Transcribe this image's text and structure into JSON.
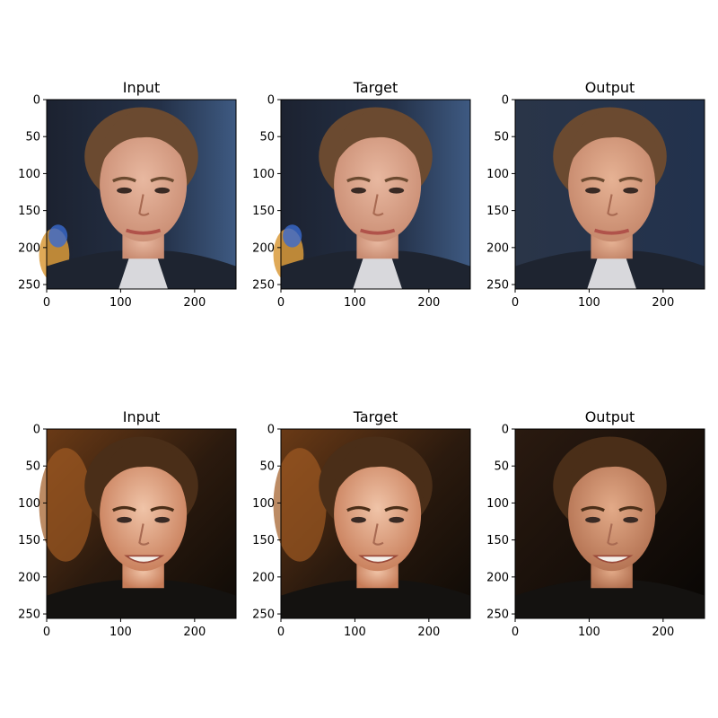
{
  "figure": {
    "panels": [
      {
        "title": "Input",
        "image": "face-portrait-man-1-input"
      },
      {
        "title": "Target",
        "image": "face-portrait-man-1-target"
      },
      {
        "title": "Output",
        "image": "face-portrait-man-1-output"
      },
      {
        "title": "Input",
        "image": "face-portrait-man-2-input"
      },
      {
        "title": "Target",
        "image": "face-portrait-man-2-target"
      },
      {
        "title": "Output",
        "image": "face-portrait-man-2-output"
      }
    ]
  },
  "chart_data": [
    {
      "type": "other",
      "title": "Input",
      "xlim": [
        0,
        256
      ],
      "ylim": [
        256,
        0
      ],
      "xticks": [
        0,
        100,
        200
      ],
      "yticks": [
        0,
        50,
        100,
        150,
        200,
        250
      ],
      "grid": false
    },
    {
      "type": "other",
      "title": "Target",
      "xlim": [
        0,
        256
      ],
      "ylim": [
        256,
        0
      ],
      "xticks": [
        0,
        100,
        200
      ],
      "yticks": [
        0,
        50,
        100,
        150,
        200,
        250
      ],
      "grid": false
    },
    {
      "type": "other",
      "title": "Output",
      "xlim": [
        0,
        256
      ],
      "ylim": [
        256,
        0
      ],
      "xticks": [
        0,
        100,
        200
      ],
      "yticks": [
        0,
        50,
        100,
        150,
        200,
        250
      ],
      "grid": false
    },
    {
      "type": "other",
      "title": "Input",
      "xlim": [
        0,
        256
      ],
      "ylim": [
        256,
        0
      ],
      "xticks": [
        0,
        100,
        200
      ],
      "yticks": [
        0,
        50,
        100,
        150,
        200,
        250
      ],
      "grid": false
    },
    {
      "type": "other",
      "title": "Target",
      "xlim": [
        0,
        256
      ],
      "ylim": [
        256,
        0
      ],
      "xticks": [
        0,
        100,
        200
      ],
      "yticks": [
        0,
        50,
        100,
        150,
        200,
        250
      ],
      "grid": false
    },
    {
      "type": "other",
      "title": "Output",
      "xlim": [
        0,
        256
      ],
      "ylim": [
        256,
        0
      ],
      "xticks": [
        0,
        100,
        200
      ],
      "yticks": [
        0,
        50,
        100,
        150,
        200,
        250
      ],
      "grid": false
    }
  ]
}
